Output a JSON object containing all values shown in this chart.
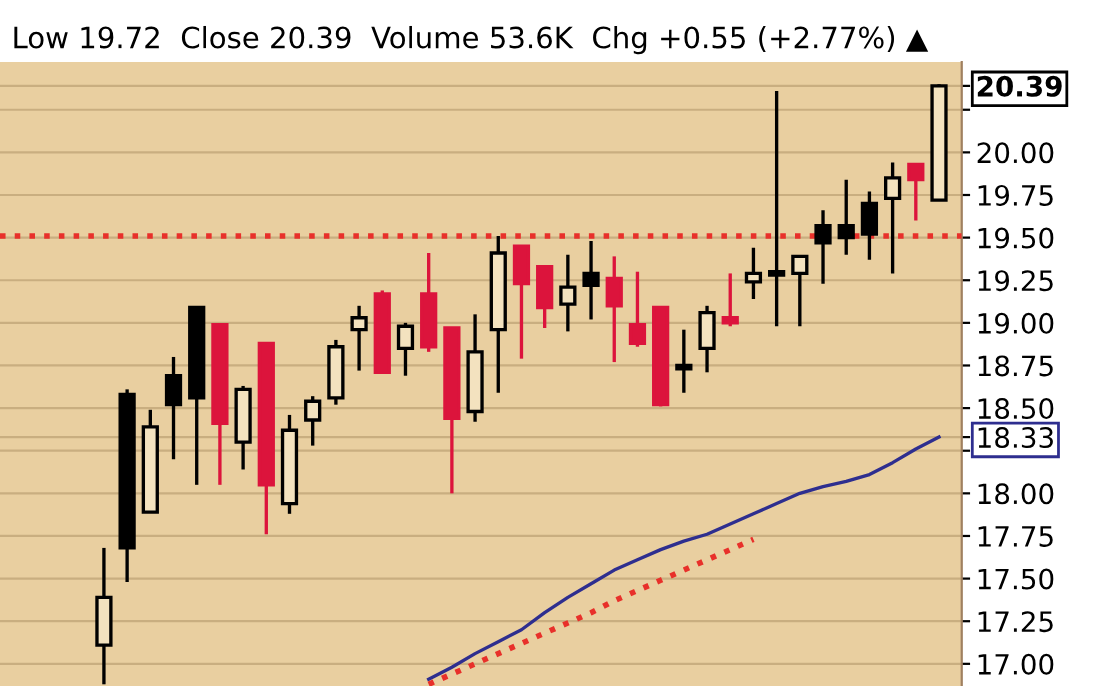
{
  "chart_data": {
    "type": "candlestick",
    "title": "Low 19.72  Close 20.39  Volume 53.6K  Chg +0.55 (+2.77%) ▲",
    "categories": [
      null,
      null,
      null,
      null,
      null,
      null,
      null,
      null,
      null,
      null,
      null,
      null,
      null,
      null,
      null,
      null,
      null,
      null,
      null,
      null,
      null,
      null,
      null,
      null,
      null,
      null,
      null,
      null,
      null,
      null,
      null,
      null,
      null,
      null,
      null,
      null,
      null
    ],
    "ohlc": [
      [
        17.11,
        17.68,
        16.88,
        17.39
      ],
      [
        18.58,
        18.61,
        17.48,
        17.68
      ],
      [
        17.89,
        18.49,
        17.89,
        18.39
      ],
      [
        18.69,
        18.8,
        18.2,
        18.52
      ],
      [
        19.09,
        19.09,
        18.05,
        18.56
      ],
      [
        18.99,
        18.99,
        18.05,
        18.41
      ],
      [
        18.3,
        18.63,
        18.14,
        18.61
      ],
      [
        18.88,
        18.88,
        17.76,
        18.05
      ],
      [
        17.94,
        18.46,
        17.88,
        18.37
      ],
      [
        18.43,
        18.57,
        18.28,
        18.54
      ],
      [
        18.56,
        18.9,
        18.52,
        18.86
      ],
      [
        18.96,
        19.1,
        18.72,
        19.03
      ],
      [
        19.17,
        19.19,
        18.7,
        18.71
      ],
      [
        18.85,
        19.0,
        18.69,
        18.98
      ],
      [
        19.17,
        19.41,
        18.83,
        18.86
      ],
      [
        18.97,
        18.97,
        18.0,
        18.44
      ],
      [
        18.48,
        19.05,
        18.42,
        18.83
      ],
      [
        18.96,
        19.51,
        18.59,
        19.41
      ],
      [
        19.45,
        19.45,
        18.79,
        19.23
      ],
      [
        19.33,
        19.33,
        18.97,
        19.09
      ],
      [
        19.11,
        19.4,
        18.95,
        19.21
      ],
      [
        19.29,
        19.48,
        19.02,
        19.22
      ],
      [
        19.26,
        19.39,
        18.77,
        19.1
      ],
      [
        18.99,
        19.3,
        18.86,
        18.88
      ],
      [
        19.09,
        19.09,
        18.51,
        18.52
      ],
      [
        18.75,
        18.96,
        18.59,
        18.73
      ],
      [
        18.85,
        19.1,
        18.71,
        19.06
      ],
      [
        19.03,
        19.29,
        18.98,
        19.0
      ],
      [
        19.24,
        19.44,
        19.14,
        19.29
      ],
      [
        19.28,
        20.36,
        18.98,
        19.3
      ],
      [
        19.29,
        19.39,
        18.98,
        19.39
      ],
      [
        19.57,
        19.66,
        19.23,
        19.47
      ],
      [
        19.57,
        19.84,
        19.4,
        19.5
      ],
      [
        19.7,
        19.77,
        19.37,
        19.52
      ],
      [
        19.73,
        19.94,
        19.29,
        19.85
      ],
      [
        19.93,
        19.93,
        19.6,
        19.84
      ],
      [
        19.72,
        20.4,
        19.72,
        20.39
      ]
    ],
    "colors": [
      "#000000",
      "#000000",
      "#000000",
      "#000000",
      "#000000",
      "#dc143c",
      "#000000",
      "#dc143c",
      "#000000",
      "#000000",
      "#000000",
      "#000000",
      "#dc143c",
      "#000000",
      "#dc143c",
      "#dc143c",
      "#000000",
      "#000000",
      "#dc143c",
      "#dc143c",
      "#000000",
      "#000000",
      "#dc143c",
      "#dc143c",
      "#dc143c",
      "#000000",
      "#000000",
      "#dc143c",
      "#000000",
      "#000000",
      "#000000",
      "#000000",
      "#000000",
      "#000000",
      "#000000",
      "#dc143c",
      "#000000"
    ],
    "series": [
      {
        "type": "line",
        "color": "#2e2e8f",
        "line_style": "solid",
        "values": [
          null,
          null,
          null,
          null,
          null,
          null,
          null,
          null,
          null,
          null,
          null,
          null,
          null,
          null,
          16.91,
          16.98,
          17.06,
          17.13,
          17.2,
          17.3,
          17.39,
          17.47,
          17.55,
          17.61,
          17.67,
          17.72,
          17.76,
          17.82,
          17.88,
          17.94,
          18.0,
          18.04,
          18.07,
          18.11,
          18.18,
          18.26,
          18.33
        ]
      },
      {
        "type": "line",
        "color": "#e8302a",
        "line_style": "dotted",
        "values": [
          null,
          null,
          null,
          null,
          null,
          null,
          null,
          null,
          null,
          null,
          null,
          null,
          null,
          null,
          16.88,
          16.94,
          17.0,
          17.06,
          17.12,
          17.18,
          17.24,
          17.3,
          17.37,
          17.43,
          17.49,
          17.55,
          17.61,
          17.67,
          17.73,
          null,
          null,
          null,
          null,
          null,
          null,
          null,
          null
        ]
      }
    ],
    "ref_lines": [
      {
        "axis": "y",
        "value": 19.51,
        "color": "#e8302a",
        "line_style": "dotted"
      }
    ],
    "ylim": [
      16.87,
      20.53
    ],
    "yticks": [
      {
        "value": 17.0,
        "label": "17.00"
      },
      {
        "value": 17.25,
        "label": "17.25"
      },
      {
        "value": 17.5,
        "label": "17.50"
      },
      {
        "value": 17.75,
        "label": "17.75"
      },
      {
        "value": 18.0,
        "label": "18.00"
      },
      {
        "value": 18.25,
        "label": null
      },
      {
        "value": 18.33,
        "label": "18.33"
      },
      {
        "value": 18.5,
        "label": "18.50"
      },
      {
        "value": 18.75,
        "label": "18.75"
      },
      {
        "value": 19.0,
        "label": "19.00"
      },
      {
        "value": 19.25,
        "label": "19.25"
      },
      {
        "value": 19.5,
        "label": "19.50"
      },
      {
        "value": 19.75,
        "label": "19.75"
      },
      {
        "value": 20.0,
        "label": "20.00"
      },
      {
        "value": 20.25,
        "label": null
      },
      {
        "value": 20.39,
        "label": "20.39"
      }
    ],
    "grid": "y",
    "tick_labels": "y"
  }
}
